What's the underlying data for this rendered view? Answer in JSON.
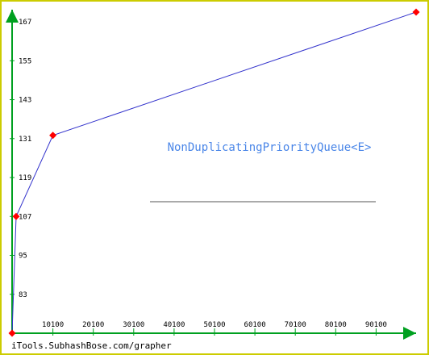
{
  "chart_data": {
    "type": "line",
    "title": "NonDuplicatingPriorityQueue<E>",
    "xlabel": "",
    "ylabel": "",
    "x": [
      0,
      1000,
      10100,
      100000
    ],
    "y": [
      71,
      107,
      132,
      170
    ],
    "xlim": [
      0,
      100000
    ],
    "ylim": [
      71,
      170
    ],
    "x_ticks": [
      10100,
      20100,
      30100,
      40100,
      50100,
      60100,
      70100,
      80100,
      90100
    ],
    "y_ticks": [
      83,
      95,
      107,
      119,
      131,
      143,
      155,
      167
    ],
    "grid": false,
    "legend": "none"
  },
  "colors": {
    "axis": "#00a020",
    "line": "#3333cc",
    "marker": "#ff0000",
    "title": "#4a86e8",
    "legend_line": "#aaaaaa",
    "border": "#cccc00"
  },
  "watermark": "iTools.SubhashBose.com/grapher"
}
